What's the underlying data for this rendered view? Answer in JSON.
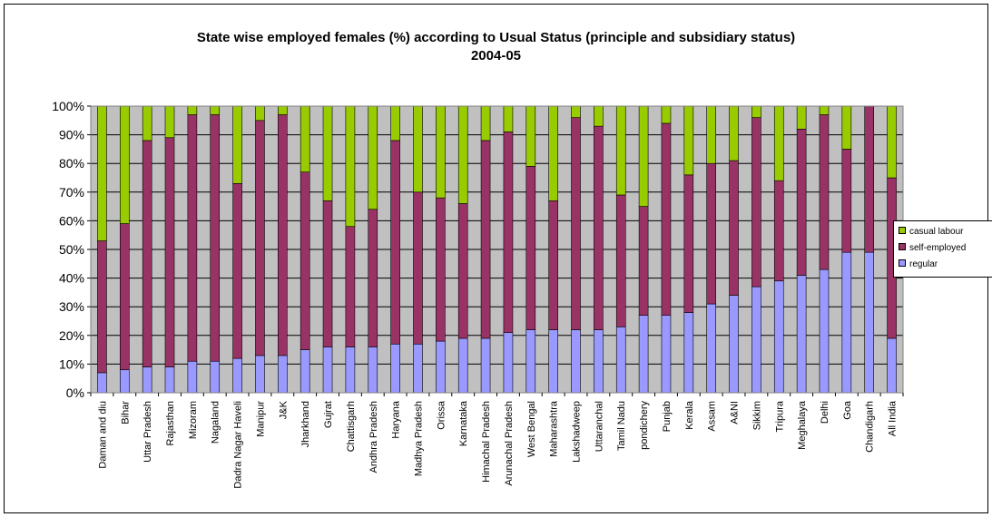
{
  "chart_data": {
    "type": "bar",
    "stacked": "percent",
    "title": "State wise employed females (%) according to Usual Status (principle and subsidiary status)",
    "subtitle": "2004-05",
    "xlabel": "",
    "ylabel": "",
    "ylim": [
      0,
      100
    ],
    "y_ticks": [
      "0%",
      "10%",
      "20%",
      "30%",
      "40%",
      "50%",
      "60%",
      "70%",
      "80%",
      "90%",
      "100%"
    ],
    "grid": true,
    "legend_position": "right",
    "plot_background": "#c0c0c0",
    "categories": [
      "Daman and diu",
      "Bihar",
      "Uttar Pradesh",
      "Rajasthan",
      "Mizoram",
      "Nagaland",
      "Dadra Nagar Haveli",
      "Manipur",
      "J&K",
      "Jharkhand",
      "Gujrat",
      "Chattisgarh",
      "Andhra Pradesh",
      "Haryana",
      "Madhya Pradesh",
      "Orissa",
      "Karnataka",
      "Himachal Pradesh",
      "Arunachal Pradesh",
      "West Bengal",
      "Maharashtra",
      "Lakshadweep",
      "Uttaranchal",
      "Tamil Nadu",
      "pondichery",
      "Punjab",
      "Kerala",
      "Assam",
      "A&NI",
      "Sikkim",
      "Tripura",
      "Meghalaya",
      "Delhi",
      "Goa",
      "Chandigarh",
      "All India"
    ],
    "series": [
      {
        "name": "regular",
        "color": "#9999ff",
        "values": [
          7,
          8,
          9,
          9,
          11,
          11,
          12,
          13,
          13,
          15,
          16,
          16,
          16,
          17,
          17,
          18,
          19,
          19,
          21,
          22,
          22,
          22,
          22,
          23,
          27,
          27,
          28,
          31,
          34,
          37,
          39,
          41,
          43,
          49,
          49,
          19
        ]
      },
      {
        "name": "self-employed",
        "color": "#993366",
        "values": [
          46,
          51,
          79,
          80,
          86,
          86,
          61,
          82,
          84,
          62,
          51,
          42,
          48,
          71,
          53,
          50,
          47,
          69,
          70,
          57,
          45,
          74,
          71,
          46,
          38,
          67,
          48,
          49,
          47,
          59,
          35,
          51,
          54,
          36,
          51,
          56
        ]
      },
      {
        "name": "casual labour",
        "color": "#99cc00",
        "values": [
          47,
          41,
          12,
          11,
          3,
          3,
          27,
          5,
          3,
          23,
          33,
          42,
          36,
          12,
          30,
          32,
          34,
          12,
          9,
          21,
          33,
          4,
          7,
          31,
          35,
          6,
          24,
          20,
          19,
          4,
          26,
          8,
          3,
          15,
          0,
          25
        ]
      }
    ]
  }
}
